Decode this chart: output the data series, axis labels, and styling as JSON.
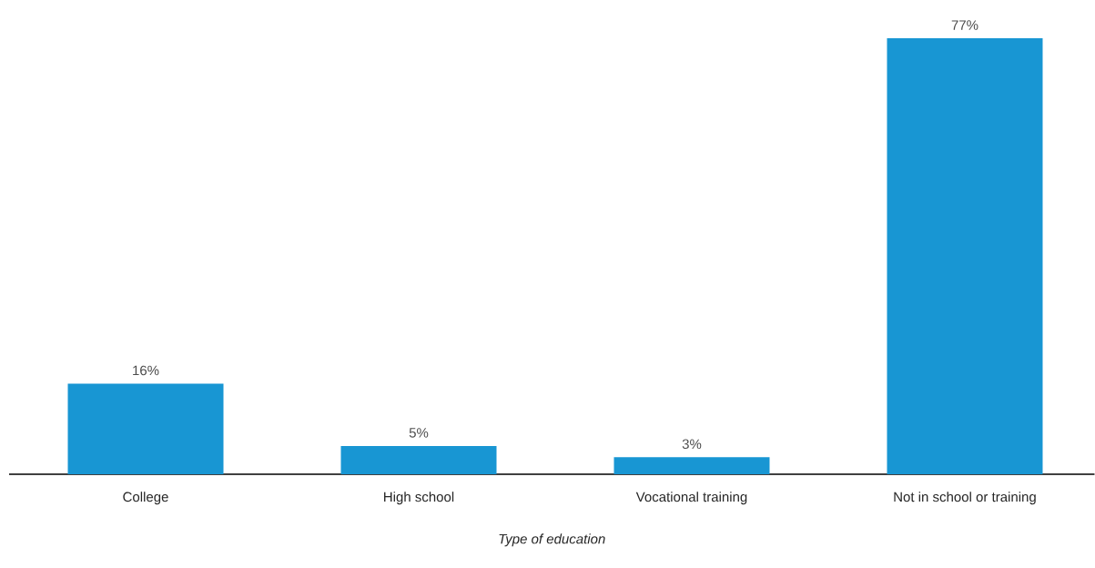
{
  "chart_data": {
    "type": "bar",
    "xlabel": "Type of education",
    "categories": [
      "College",
      "High school",
      "Vocational training",
      "Not in school or training"
    ],
    "values": [
      16,
      5,
      3,
      77
    ],
    "value_labels": [
      "16%",
      "5%",
      "3%",
      "77%"
    ],
    "color": "#1896d3"
  }
}
